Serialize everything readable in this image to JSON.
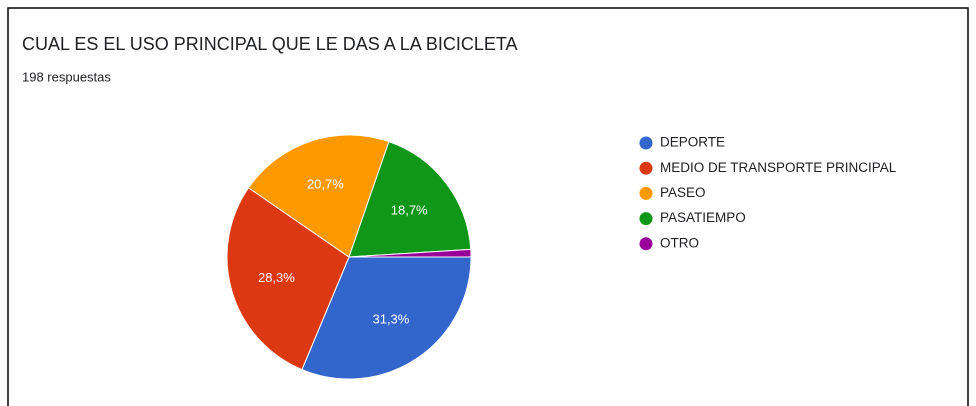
{
  "chart_data": {
    "type": "pie",
    "title": "CUAL ES EL USO PRINCIPAL QUE LE DAS A LA BICICLETA",
    "subtitle": "198 respuestas",
    "categories": [
      "DEPORTE",
      "MEDIO DE TRANSPORTE PRINCIPAL",
      "PASEO",
      "PASATIEMPO",
      "OTRO"
    ],
    "values": [
      31.3,
      28.3,
      20.7,
      18.7,
      1.0
    ],
    "value_labels": [
      "31,3%",
      "28,3%",
      "20,7%",
      "18,7%",
      null
    ],
    "colors": [
      "#3366cc",
      "#dc3912",
      "#ff9900",
      "#109618",
      "#990099"
    ],
    "legend": "right"
  }
}
